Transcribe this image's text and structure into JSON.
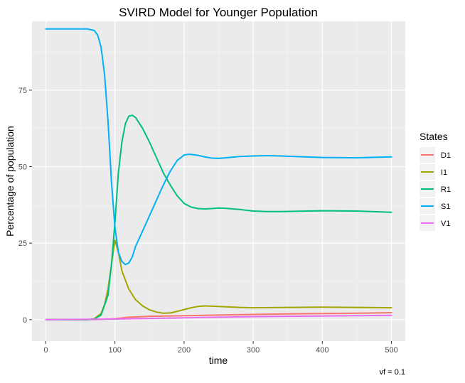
{
  "chart_data": {
    "type": "line",
    "title": "SVIRD Model for Younger Population",
    "xlabel": "time",
    "ylabel": "Percentage of population",
    "caption": "vf = 0.1",
    "xlim": [
      -20,
      520
    ],
    "ylim": [
      -7,
      97.5
    ],
    "x_ticks": [
      0,
      100,
      200,
      300,
      400,
      500
    ],
    "y_ticks": [
      0,
      25,
      50,
      75
    ],
    "grid": true,
    "legend": {
      "title": "States",
      "position": "right"
    },
    "series": [
      {
        "name": "D1",
        "color": "#F8766D",
        "x": [
          0,
          60,
          80,
          100,
          120,
          150,
          200,
          250,
          300,
          350,
          400,
          450,
          500
        ],
        "y": [
          0,
          0,
          0.1,
          0.3,
          0.8,
          1.1,
          1.3,
          1.5,
          1.7,
          1.9,
          2.0,
          2.1,
          2.3
        ]
      },
      {
        "name": "I1",
        "color": "#A3A500",
        "x": [
          0,
          60,
          70,
          80,
          85,
          90,
          95,
          100,
          105,
          110,
          120,
          130,
          140,
          150,
          160,
          170,
          180,
          190,
          200,
          210,
          220,
          230,
          240,
          260,
          280,
          300,
          350,
          400,
          450,
          500
        ],
        "y": [
          0,
          0,
          0.3,
          2,
          5,
          10,
          18,
          26,
          22,
          16,
          10,
          6.5,
          4.5,
          3.2,
          2.5,
          2.1,
          2.2,
          2.7,
          3.3,
          3.9,
          4.3,
          4.5,
          4.4,
          4.2,
          4.0,
          3.9,
          4.0,
          4.1,
          4.0,
          3.9
        ]
      },
      {
        "name": "R1",
        "color": "#00BF7D",
        "x": [
          0,
          60,
          70,
          80,
          90,
          95,
          100,
          105,
          110,
          115,
          120,
          125,
          130,
          140,
          150,
          160,
          170,
          180,
          190,
          200,
          210,
          220,
          230,
          240,
          250,
          260,
          280,
          300,
          320,
          340,
          360,
          400,
          450,
          500
        ],
        "y": [
          0,
          0,
          0.2,
          1.5,
          8,
          18,
          32,
          48,
          58,
          64,
          66.5,
          66.8,
          66,
          62.5,
          58,
          53,
          48,
          44,
          40.5,
          38,
          36.8,
          36.3,
          36.2,
          36.3,
          36.5,
          36.4,
          36,
          35.5,
          35.3,
          35.3,
          35.4,
          35.6,
          35.5,
          35.1
        ]
      },
      {
        "name": "S1",
        "color": "#00B0F6",
        "x": [
          0,
          50,
          60,
          70,
          75,
          80,
          85,
          90,
          95,
          100,
          105,
          110,
          115,
          120,
          125,
          130,
          140,
          150,
          160,
          170,
          180,
          190,
          200,
          205,
          210,
          220,
          230,
          240,
          250,
          260,
          280,
          300,
          320,
          340,
          360,
          400,
          450,
          500
        ],
        "y": [
          95,
          95,
          95,
          94.5,
          93,
          89,
          80,
          65,
          45,
          30,
          22,
          19,
          18,
          18.5,
          20.5,
          24,
          29,
          34,
          39,
          44,
          48.5,
          52,
          53.8,
          54,
          54,
          53.7,
          53.2,
          52.8,
          52.7,
          52.9,
          53.3,
          53.5,
          53.6,
          53.5,
          53.3,
          53.0,
          52.9,
          53.2
        ]
      },
      {
        "name": "V1",
        "color": "#E76BF3",
        "x": [
          0,
          60,
          100,
          150,
          200,
          250,
          300,
          350,
          400,
          450,
          500
        ],
        "y": [
          0,
          0.1,
          0.2,
          0.4,
          0.6,
          0.8,
          1.0,
          1.1,
          1.2,
          1.3,
          1.4
        ]
      }
    ]
  }
}
